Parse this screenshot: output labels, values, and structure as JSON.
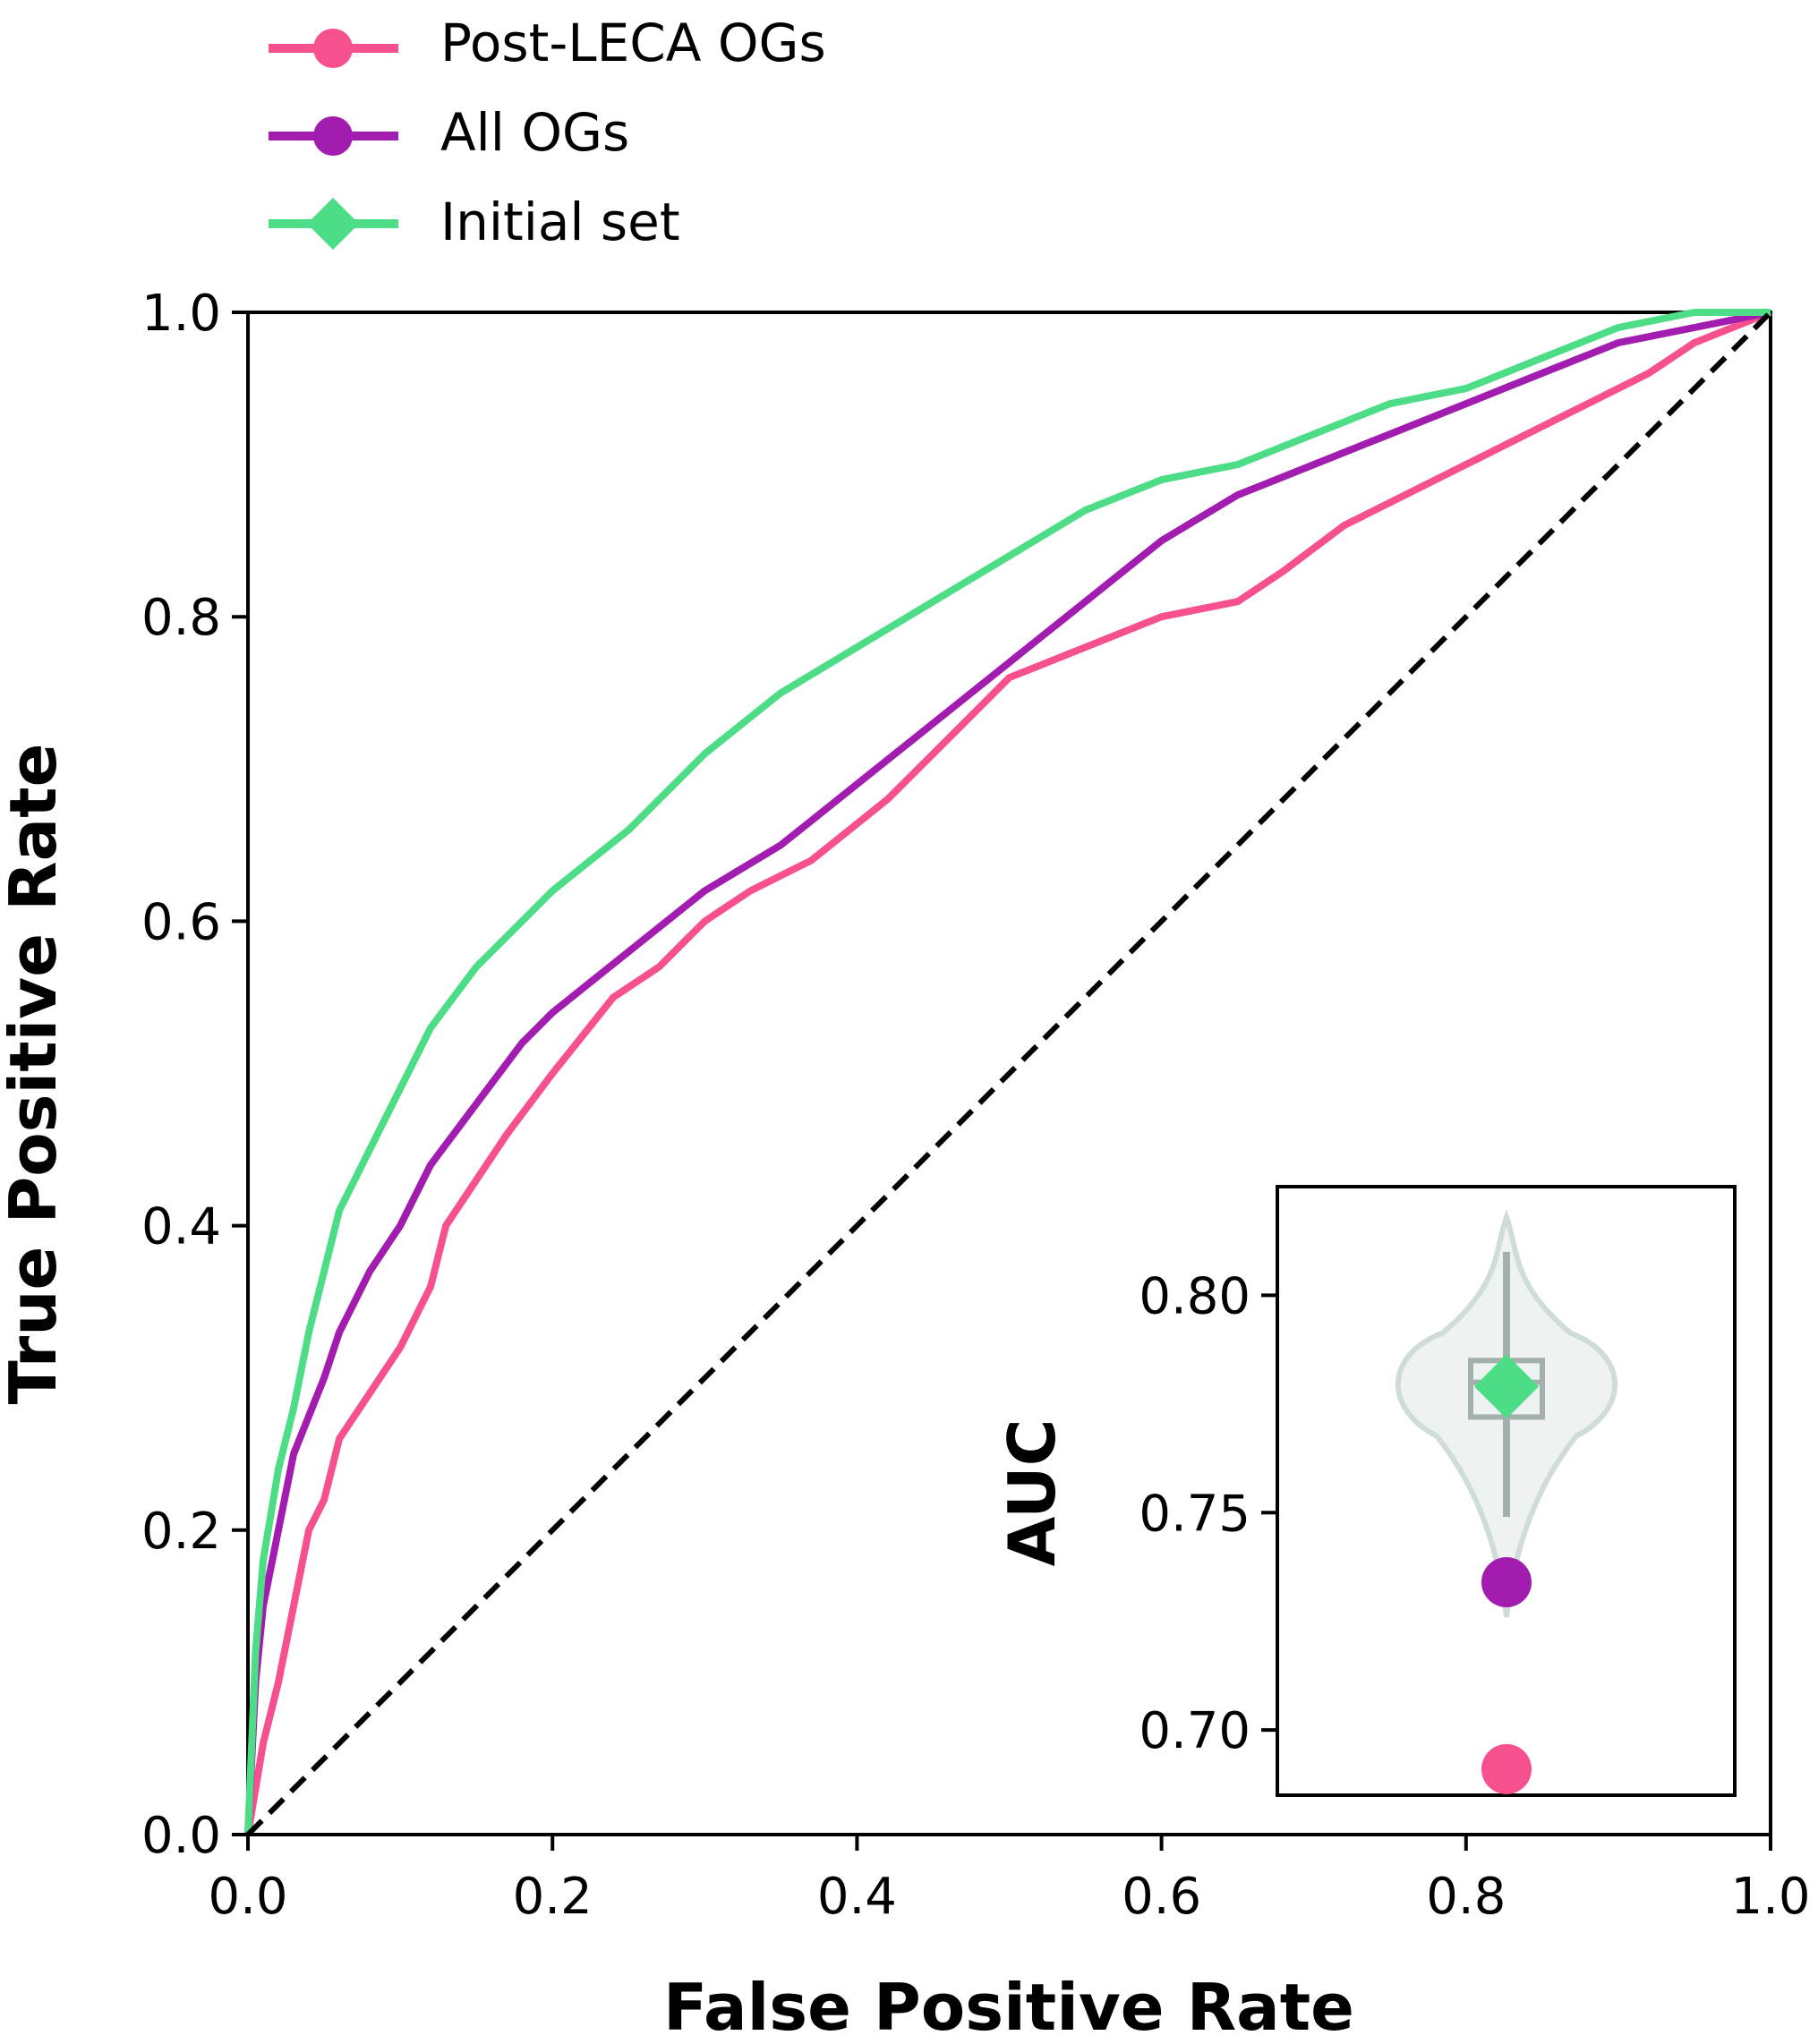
{
  "chart_data": [
    {
      "type": "line",
      "xlabel": "False Positive Rate",
      "ylabel": "True Positive Rate",
      "xlim": [
        0,
        1
      ],
      "ylim": [
        0,
        1
      ],
      "xticks": [
        "0.0",
        "0.2",
        "0.4",
        "0.6",
        "0.8",
        "1.0"
      ],
      "yticks": [
        "0.0",
        "0.2",
        "0.4",
        "0.6",
        "0.8",
        "1.0"
      ],
      "grid": false,
      "legend": "top-left, above axes",
      "diagonal": {
        "style": "dashed",
        "color": "#000000",
        "points": [
          [
            0,
            0
          ],
          [
            1,
            1
          ]
        ]
      },
      "series": [
        {
          "name": "Post-LECA OGs",
          "color": "#f7508f",
          "marker": "circle",
          "points": [
            [
              0,
              0
            ],
            [
              0.01,
              0.06
            ],
            [
              0.02,
              0.1
            ],
            [
              0.03,
              0.15
            ],
            [
              0.04,
              0.2
            ],
            [
              0.05,
              0.22
            ],
            [
              0.06,
              0.26
            ],
            [
              0.08,
              0.29
            ],
            [
              0.1,
              0.32
            ],
            [
              0.12,
              0.36
            ],
            [
              0.13,
              0.4
            ],
            [
              0.15,
              0.43
            ],
            [
              0.17,
              0.46
            ],
            [
              0.2,
              0.5
            ],
            [
              0.24,
              0.55
            ],
            [
              0.27,
              0.57
            ],
            [
              0.3,
              0.6
            ],
            [
              0.33,
              0.62
            ],
            [
              0.37,
              0.64
            ],
            [
              0.42,
              0.68
            ],
            [
              0.45,
              0.71
            ],
            [
              0.48,
              0.74
            ],
            [
              0.5,
              0.76
            ],
            [
              0.55,
              0.78
            ],
            [
              0.6,
              0.8
            ],
            [
              0.65,
              0.81
            ],
            [
              0.68,
              0.83
            ],
            [
              0.72,
              0.86
            ],
            [
              0.76,
              0.88
            ],
            [
              0.8,
              0.9
            ],
            [
              0.84,
              0.92
            ],
            [
              0.88,
              0.94
            ],
            [
              0.92,
              0.96
            ],
            [
              0.95,
              0.98
            ],
            [
              1.0,
              1.0
            ]
          ]
        },
        {
          "name": "All OGs",
          "color": "#a21caf",
          "marker": "circle",
          "points": [
            [
              0,
              0
            ],
            [
              0.005,
              0.1
            ],
            [
              0.01,
              0.15
            ],
            [
              0.02,
              0.2
            ],
            [
              0.03,
              0.25
            ],
            [
              0.05,
              0.3
            ],
            [
              0.06,
              0.33
            ],
            [
              0.08,
              0.37
            ],
            [
              0.1,
              0.4
            ],
            [
              0.12,
              0.44
            ],
            [
              0.15,
              0.48
            ],
            [
              0.18,
              0.52
            ],
            [
              0.2,
              0.54
            ],
            [
              0.25,
              0.58
            ],
            [
              0.3,
              0.62
            ],
            [
              0.35,
              0.65
            ],
            [
              0.4,
              0.69
            ],
            [
              0.45,
              0.73
            ],
            [
              0.5,
              0.77
            ],
            [
              0.55,
              0.81
            ],
            [
              0.6,
              0.85
            ],
            [
              0.65,
              0.88
            ],
            [
              0.7,
              0.9
            ],
            [
              0.75,
              0.92
            ],
            [
              0.8,
              0.94
            ],
            [
              0.85,
              0.96
            ],
            [
              0.9,
              0.98
            ],
            [
              0.95,
              0.99
            ],
            [
              1.0,
              1.0
            ]
          ]
        },
        {
          "name": "Initial set",
          "color": "#4ddd86",
          "marker": "diamond",
          "points": [
            [
              0,
              0
            ],
            [
              0.005,
              0.12
            ],
            [
              0.01,
              0.18
            ],
            [
              0.02,
              0.24
            ],
            [
              0.03,
              0.28
            ],
            [
              0.04,
              0.33
            ],
            [
              0.05,
              0.37
            ],
            [
              0.06,
              0.41
            ],
            [
              0.08,
              0.45
            ],
            [
              0.1,
              0.49
            ],
            [
              0.12,
              0.53
            ],
            [
              0.15,
              0.57
            ],
            [
              0.18,
              0.6
            ],
            [
              0.2,
              0.62
            ],
            [
              0.25,
              0.66
            ],
            [
              0.3,
              0.71
            ],
            [
              0.35,
              0.75
            ],
            [
              0.4,
              0.78
            ],
            [
              0.45,
              0.81
            ],
            [
              0.5,
              0.84
            ],
            [
              0.55,
              0.87
            ],
            [
              0.6,
              0.89
            ],
            [
              0.65,
              0.9
            ],
            [
              0.7,
              0.92
            ],
            [
              0.75,
              0.94
            ],
            [
              0.8,
              0.95
            ],
            [
              0.85,
              0.97
            ],
            [
              0.9,
              0.99
            ],
            [
              0.95,
              1.0
            ],
            [
              1.0,
              1.0
            ]
          ]
        }
      ]
    },
    {
      "type": "violin",
      "ylabel": "AUC",
      "ylim": [
        0.685,
        0.825
      ],
      "yticks": [
        "0.70",
        "0.75",
        "0.80"
      ],
      "distribution": {
        "color": "#d0dcd8",
        "min": 0.726,
        "max": 0.818,
        "q1": 0.772,
        "median": 0.78,
        "q3": 0.785,
        "whisker_low": 0.749,
        "whisker_high": 0.81
      },
      "points": [
        {
          "series": "Initial set",
          "value": 0.779,
          "color": "#4ddd86",
          "marker": "diamond"
        },
        {
          "series": "All OGs",
          "value": 0.734,
          "color": "#a21caf",
          "marker": "circle"
        },
        {
          "series": "Post-LECA OGs",
          "value": 0.691,
          "color": "#f7508f",
          "marker": "circle"
        }
      ]
    }
  ]
}
